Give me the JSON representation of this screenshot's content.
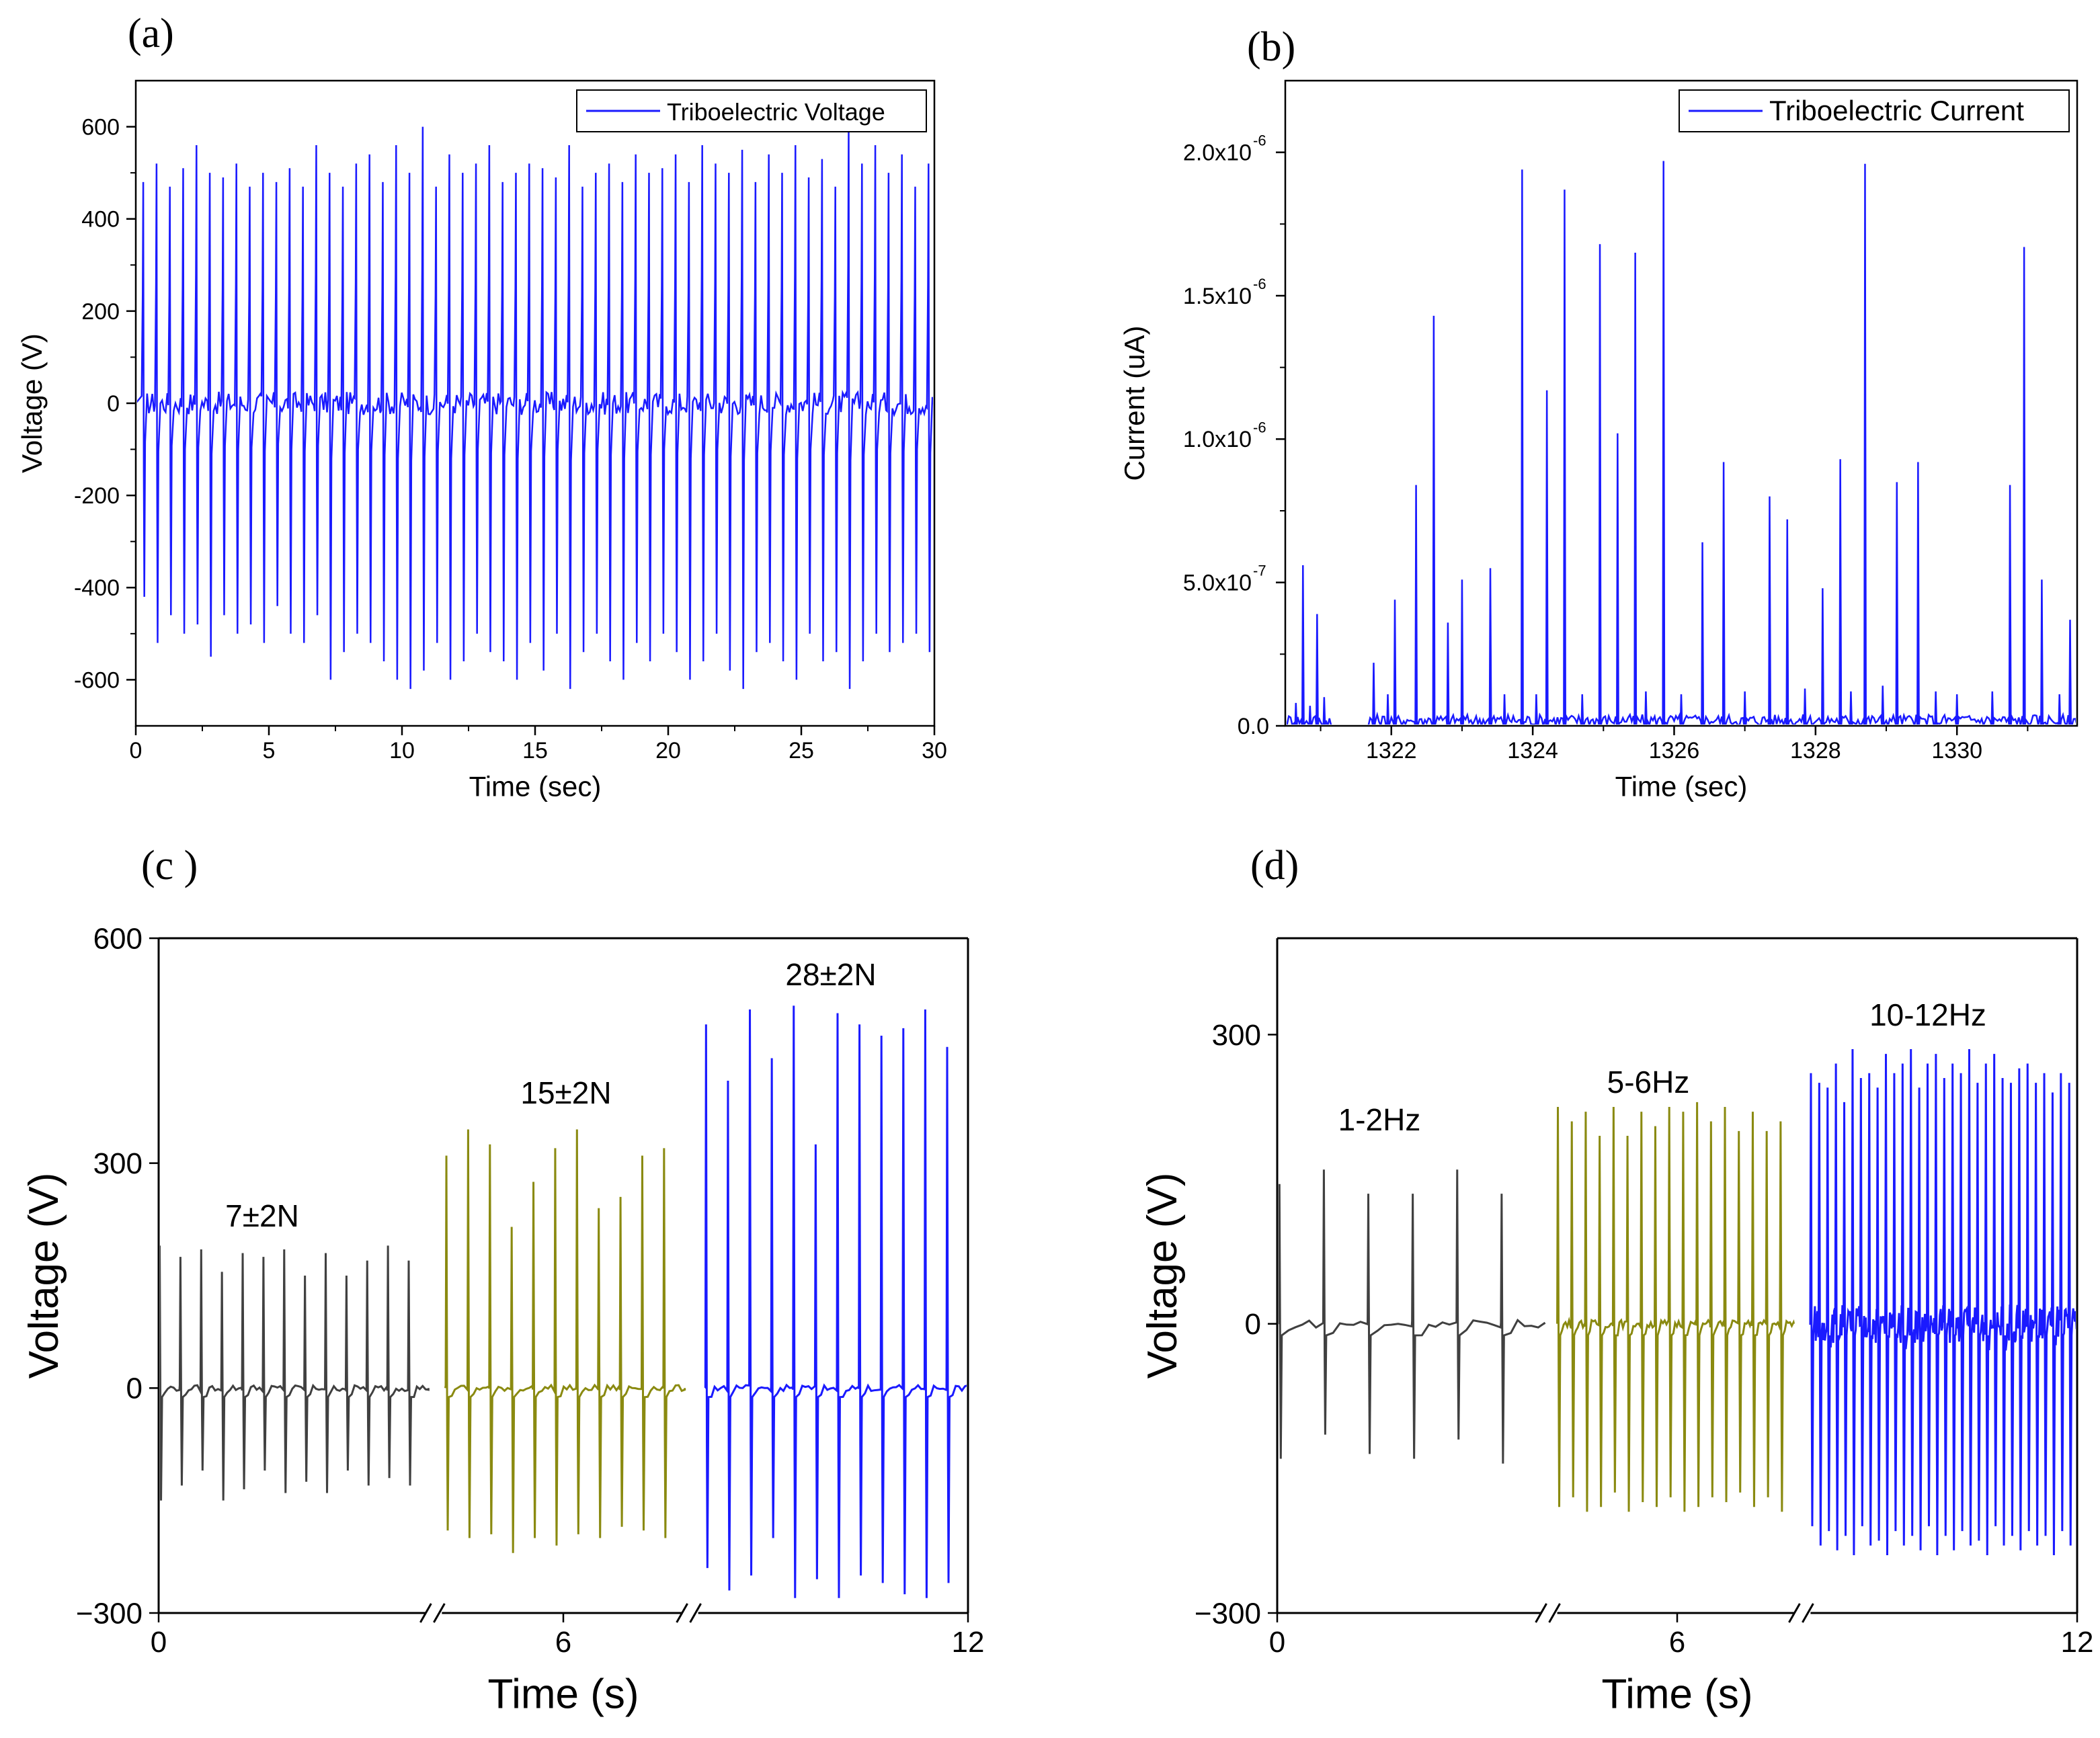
{
  "colors": {
    "blue": "#1a1aff",
    "dark": "#404040",
    "olive": "#8a8a10",
    "axis": "#000000"
  },
  "chart_data": [
    {
      "panel_label": "(a)",
      "type": "line",
      "title": "",
      "xlabel": "Time (sec)",
      "ylabel": "Voltage (V)",
      "xlim": [
        0,
        30
      ],
      "ylim": [
        -700,
        700
      ],
      "xticks": [
        {
          "value": 0,
          "label": "0"
        },
        {
          "value": 5,
          "label": "5"
        },
        {
          "value": 10,
          "label": "10"
        },
        {
          "value": 15,
          "label": "15"
        },
        {
          "value": 20,
          "label": "20"
        },
        {
          "value": 25,
          "label": "25"
        },
        {
          "value": 30,
          "label": "30"
        }
      ],
      "yticks": [
        {
          "value": -600,
          "label": "-600"
        },
        {
          "value": -400,
          "label": "-400"
        },
        {
          "value": -200,
          "label": "-200"
        },
        {
          "value": 0,
          "label": "0"
        },
        {
          "value": 200,
          "label": "200"
        },
        {
          "value": 400,
          "label": "400"
        },
        {
          "value": 600,
          "label": "600"
        }
      ],
      "legend": [
        "Triboelectric Voltage"
      ],
      "legend_position": "top-right",
      "series": [
        {
          "name": "Triboelectric Voltage",
          "color": "#1a1aff",
          "pulse_interval_s": 0.5,
          "pulse_start_s": 0.3,
          "peak_values": [
            480,
            520,
            470,
            510,
            560,
            500,
            490,
            520,
            470,
            500,
            480,
            510,
            470,
            560,
            500,
            470,
            520,
            540,
            480,
            560,
            500,
            600,
            470,
            540,
            500,
            520,
            560,
            480,
            500,
            520,
            510,
            490,
            560,
            470,
            500,
            520,
            480,
            540,
            500,
            510,
            540,
            480,
            560,
            520,
            500,
            550,
            480,
            540,
            500,
            560,
            490,
            530,
            470,
            600,
            520,
            560,
            500,
            540,
            470,
            520
          ],
          "trough_values": [
            -420,
            -520,
            -460,
            -500,
            -480,
            -550,
            -460,
            -500,
            -480,
            -520,
            -440,
            -500,
            -520,
            -460,
            -600,
            -540,
            -500,
            -520,
            -560,
            -600,
            -620,
            -580,
            -520,
            -600,
            -560,
            -500,
            -540,
            -560,
            -600,
            -520,
            -580,
            -500,
            -620,
            -540,
            -500,
            -560,
            -600,
            -520,
            -560,
            -500,
            -540,
            -600,
            -560,
            -500,
            -580,
            -620,
            -540,
            -520,
            -560,
            -600,
            -500,
            -560,
            -540,
            -620,
            -560,
            -500,
            -540,
            -520,
            -500,
            -540
          ]
        }
      ]
    },
    {
      "panel_label": "(b)",
      "type": "line",
      "title": "",
      "xlabel": "Time (sec)",
      "ylabel": "Current (uA)",
      "xlim": [
        1320.5,
        1331.7
      ],
      "ylim": [
        0,
        2.25e-06
      ],
      "xticks": [
        {
          "value": 1322,
          "label": "1322"
        },
        {
          "value": 1324,
          "label": "1324"
        },
        {
          "value": 1326,
          "label": "1326"
        },
        {
          "value": 1328,
          "label": "1328"
        },
        {
          "value": 1330,
          "label": "1330"
        }
      ],
      "yticks": [
        {
          "value": 0,
          "label": "0.0"
        },
        {
          "value": 5e-07,
          "label": "5.0x10",
          "exp": "-7"
        },
        {
          "value": 1e-06,
          "label": "1.0x10",
          "exp": "-6"
        },
        {
          "value": 1.5e-06,
          "label": "1.5x10",
          "exp": "-6"
        },
        {
          "value": 2e-06,
          "label": "2.0x10",
          "exp": "-6"
        }
      ],
      "legend": [
        "Triboelectric Current"
      ],
      "legend_position": "top-right",
      "series": [
        {
          "name": "Triboelectric Current",
          "color": "#1a1aff",
          "peaks": [
            [
              1320.65,
              8e-08
            ],
            [
              1320.75,
              5.6e-07
            ],
            [
              1320.85,
              7e-08
            ],
            [
              1320.95,
              3.9e-07
            ],
            [
              1321.05,
              1e-07
            ],
            [
              1321.75,
              2.2e-07
            ],
            [
              1321.95,
              1.1e-07
            ],
            [
              1322.05,
              4.4e-07
            ],
            [
              1322.35,
              8.4e-07
            ],
            [
              1322.6,
              1.43e-06
            ],
            [
              1322.8,
              3.6e-07
            ],
            [
              1323.0,
              5.1e-07
            ],
            [
              1323.4,
              5.5e-07
            ],
            [
              1323.6,
              1.1e-07
            ],
            [
              1323.85,
              1.94e-06
            ],
            [
              1324.05,
              1.1e-07
            ],
            [
              1324.2,
              1.17e-06
            ],
            [
              1324.45,
              1.87e-06
            ],
            [
              1324.7,
              1.1e-07
            ],
            [
              1324.95,
              1.68e-06
            ],
            [
              1325.2,
              1.02e-06
            ],
            [
              1325.45,
              1.65e-06
            ],
            [
              1325.6,
              1.2e-07
            ],
            [
              1325.85,
              1.97e-06
            ],
            [
              1326.1,
              1.1e-07
            ],
            [
              1326.4,
              6.4e-07
            ],
            [
              1326.7,
              9.2e-07
            ],
            [
              1327.0,
              1.2e-07
            ],
            [
              1327.35,
              8e-07
            ],
            [
              1327.6,
              7.2e-07
            ],
            [
              1327.85,
              1.3e-07
            ],
            [
              1328.1,
              4.8e-07
            ],
            [
              1328.35,
              9.3e-07
            ],
            [
              1328.5,
              1.2e-07
            ],
            [
              1328.7,
              1.96e-06
            ],
            [
              1328.95,
              1.4e-07
            ],
            [
              1329.15,
              8.5e-07
            ],
            [
              1329.45,
              9.2e-07
            ],
            [
              1329.7,
              1.2e-07
            ],
            [
              1330.0,
              1.1e-07
            ],
            [
              1330.5,
              1.2e-07
            ],
            [
              1330.75,
              8.4e-07
            ],
            [
              1330.95,
              1.67e-06
            ],
            [
              1331.2,
              5.1e-07
            ],
            [
              1331.45,
              1.1e-07
            ],
            [
              1331.6,
              3.7e-07
            ]
          ]
        }
      ]
    },
    {
      "panel_label": "(c )",
      "type": "line",
      "title": "",
      "xlabel": "Time (s)",
      "ylabel": "Voltage (V)",
      "xlim": [
        0,
        12
      ],
      "ylim": [
        -300,
        600
      ],
      "xticks": [
        {
          "value": 0,
          "label": "0"
        },
        {
          "value": 6,
          "label": "6"
        },
        {
          "value": 12,
          "label": "12"
        }
      ],
      "yticks": [
        {
          "value": -300,
          "label": "−300"
        },
        {
          "value": 0,
          "label": "0"
        },
        {
          "value": 300,
          "label": "300"
        },
        {
          "value": 600,
          "label": "600"
        }
      ],
      "axis_breaks": [
        4.1,
        7.9
      ],
      "series": [
        {
          "name": "7±2N",
          "color": "#404040",
          "segment": [
            0,
            4.0
          ],
          "peak_values": [
            190,
            175,
            185,
            155,
            180,
            175,
            185,
            150,
            180,
            150,
            170,
            190,
            170
          ],
          "trough_values": [
            -150,
            -130,
            -110,
            -150,
            -135,
            -110,
            -140,
            -125,
            -140,
            -110,
            -130,
            -120,
            -130
          ]
        },
        {
          "name": "15±2N",
          "color": "#8a8a10",
          "segment": [
            4.25,
            7.8
          ],
          "peak_values": [
            310,
            345,
            325,
            215,
            275,
            320,
            345,
            240,
            255,
            310,
            320
          ],
          "trough_values": [
            -190,
            -200,
            -195,
            -220,
            -200,
            -210,
            -195,
            -200,
            -185,
            -190,
            -200
          ]
        },
        {
          "name": "28±2N",
          "color": "#1a1aff",
          "segment": [
            8.1,
            12.0
          ],
          "peak_values": [
            485,
            410,
            505,
            440,
            510,
            325,
            500,
            485,
            470,
            480,
            505,
            455
          ],
          "trough_values": [
            -240,
            -270,
            -250,
            -200,
            -280,
            -255,
            -280,
            -250,
            -260,
            -275,
            -280,
            -260
          ]
        }
      ],
      "annotations": [
        "7±2N",
        "15±2N",
        "28±2N"
      ]
    },
    {
      "panel_label": "(d)",
      "type": "line",
      "title": "",
      "xlabel": "Time (s)",
      "ylabel": "Voltage (V)",
      "xlim": [
        0,
        12
      ],
      "ylim": [
        -300,
        400
      ],
      "xticks": [
        {
          "value": 0,
          "label": "0"
        },
        {
          "value": 6,
          "label": "6"
        },
        {
          "value": 12,
          "label": "12"
        }
      ],
      "yticks": [
        {
          "value": -300,
          "label": "−300"
        },
        {
          "value": 0,
          "label": "0"
        },
        {
          "value": 300,
          "label": "300"
        }
      ],
      "axis_breaks": [
        4.1,
        7.9
      ],
      "series": [
        {
          "name": "1-2Hz",
          "color": "#404040",
          "segment": [
            0,
            4.0
          ],
          "peak_values": [
            145,
            160,
            135,
            135,
            160,
            135
          ],
          "trough_values": [
            -140,
            -115,
            -135,
            -140,
            -120,
            -145
          ]
        },
        {
          "name": "5-6Hz",
          "color": "#8a8a10",
          "segment": [
            4.2,
            7.75
          ],
          "peak_values": [
            225,
            210,
            220,
            195,
            225,
            195,
            220,
            205,
            225,
            220,
            230,
            210,
            225,
            200,
            220,
            200,
            210
          ],
          "trough_values": [
            -190,
            -180,
            -195,
            -190,
            -175,
            -195,
            -185,
            -190,
            -180,
            -195,
            -190,
            -180,
            -185,
            -175,
            -190,
            -180,
            -195
          ]
        },
        {
          "name": "10-12Hz",
          "color": "#1a1aff",
          "segment": [
            8.0,
            12.0
          ],
          "peak_values": [
            260,
            250,
            245,
            270,
            230,
            285,
            255,
            260,
            245,
            280,
            260,
            270,
            285,
            245,
            270,
            280,
            255,
            270,
            260,
            285,
            250,
            270,
            280,
            255,
            250,
            265,
            270,
            250,
            260,
            240,
            260,
            250
          ],
          "trough_values": [
            -210,
            -230,
            -215,
            -235,
            -220,
            -240,
            -210,
            -230,
            -225,
            -240,
            -215,
            -230,
            -220,
            -235,
            -210,
            -240,
            -220,
            -235,
            -215,
            -230,
            -225,
            -240,
            -210,
            -230,
            -220,
            -235,
            -215,
            -230,
            -220,
            -240,
            -215,
            -230
          ]
        }
      ],
      "annotations": [
        "1-2Hz",
        "5-6Hz",
        "10-12Hz"
      ]
    }
  ]
}
